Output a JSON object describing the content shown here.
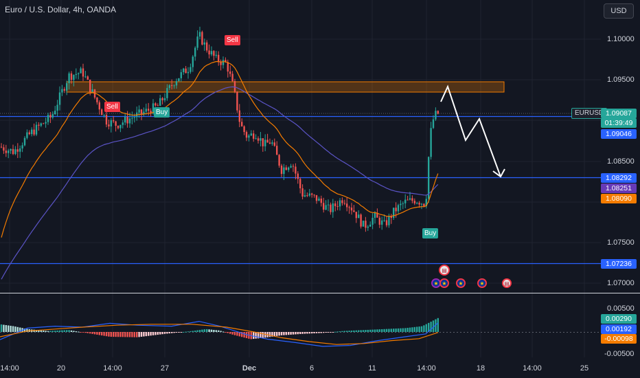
{
  "header": {
    "title": "Euro / U.S. Dollar, 4h, OANDA",
    "currency": "USD"
  },
  "price_axis": {
    "ticks": [
      "1.10000",
      "1.09500",
      "1.08500",
      "1.07500",
      "1.07000"
    ],
    "tags": {
      "symbol": "EURUSD",
      "current_price": "1.09087",
      "countdown": "01:39:49",
      "level_1": "1.09046",
      "level_2": "1.08292",
      "ma_slow": "1.08251",
      "ma_fast": "1.08090",
      "level_3": "1.07236"
    }
  },
  "macd_axis": {
    "ticks": [
      "0.00500",
      "-0.00500"
    ],
    "tags": {
      "histogram": "0.00290",
      "macd": "0.00192",
      "signal": "-0.00098"
    }
  },
  "time_axis": [
    "14:00",
    "20",
    "14:00",
    "27",
    "Dec",
    "6",
    "11",
    "14:00",
    "18",
    "14:00",
    "25"
  ],
  "signals": {
    "sell_1": "Sell",
    "sell_2": "Sell",
    "buy_1": "Buy",
    "buy_2": "Buy"
  },
  "colors": {
    "bg": "#131722",
    "up": "#26a69a",
    "down": "#ef5350",
    "level": "#2962ff",
    "ma_fast": "#f57c00",
    "ma_slow": "#5b54c7",
    "zone": "#f57c00"
  },
  "chart_data": {
    "type": "candlestick",
    "instrument": "EURUSD",
    "timeframe": "4h",
    "y_range": [
      1.0685,
      1.1045
    ],
    "horizontal_levels": [
      1.09046,
      1.08292,
      1.07236
    ],
    "resistance_zone": [
      1.0938,
      1.0951
    ],
    "ma_fast_last": 1.0809,
    "ma_slow_last": 1.08251,
    "last_price": 1.09087,
    "projection": [
      1.0914,
      1.0945,
      1.0886,
      1.0906,
      1.0829
    ],
    "macd": {
      "histogram_last": 0.0029,
      "macd_last": 0.00192,
      "signal_last": -0.00098
    }
  }
}
